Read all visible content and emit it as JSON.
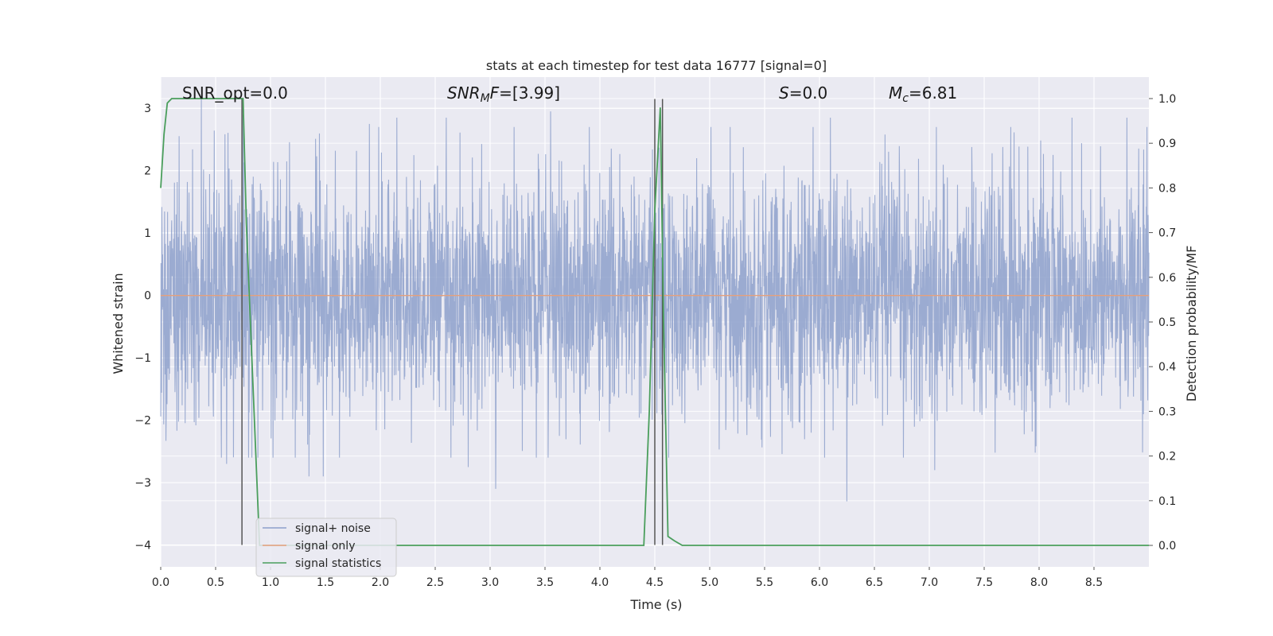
{
  "chart_data": {
    "type": "line",
    "title": "stats at each timestep for test data 16777 [signal=0]",
    "xlabel": "Time (s)",
    "ylabel": "Whitened strain",
    "y2label": "Detection probability/MF",
    "xlim": [
      0,
      9
    ],
    "ylim": [
      -4.35,
      3.5
    ],
    "y2lim": [
      -0.048,
      1.048
    ],
    "grid": true,
    "legend_position": "lower-left",
    "x_ticks": [
      0.0,
      0.5,
      1.0,
      1.5,
      2.0,
      2.5,
      3.0,
      3.5,
      4.0,
      4.5,
      5.0,
      5.5,
      6.0,
      6.5,
      7.0,
      7.5,
      8.0,
      8.5
    ],
    "x_tick_labels": [
      "0.0",
      "0.5",
      "1.0",
      "1.5",
      "2.0",
      "2.5",
      "3.0",
      "3.5",
      "4.0",
      "4.5",
      "5.0",
      "5.5",
      "6.0",
      "6.5",
      "7.0",
      "7.5",
      "8.0",
      "8.5"
    ],
    "y_ticks": [
      -4,
      -3,
      -2,
      -1,
      0,
      1,
      2,
      3
    ],
    "y_tick_labels": [
      "−4",
      "−3",
      "−2",
      "−1",
      "0",
      "1",
      "2",
      "3"
    ],
    "y2_ticks": [
      0.0,
      0.1,
      0.2,
      0.3,
      0.4,
      0.5,
      0.6,
      0.7,
      0.8,
      0.9,
      1.0
    ],
    "y2_tick_labels": [
      "0.0",
      "0.1",
      "0.2",
      "0.3",
      "0.4",
      "0.5",
      "0.6",
      "0.7",
      "0.8",
      "0.9",
      "1.0"
    ],
    "annotations": {
      "snr_opt": "SNR_opt=0.0",
      "snr_mf_prefix": "SNR",
      "snr_mf_sub": "M",
      "snr_mf_mid": "F",
      "snr_mf_value": "=[3.99]",
      "s_symbol": "S",
      "s_value": "=0.0",
      "mc_symbol": "M",
      "mc_sub": "c",
      "mc_value": "=6.81"
    },
    "series": [
      {
        "name": "signal+ noise",
        "color": "#8da0cb",
        "axis": "left",
        "kind": "noise",
        "amplitude_std": 1.0,
        "x_start": 0,
        "x_end": 9,
        "peaks": [
          {
            "x": 0.37,
            "y": 3.15
          },
          {
            "x": 0.75,
            "y": 2.9
          },
          {
            "x": 1.9,
            "y": 2.75
          },
          {
            "x": 2.15,
            "y": 2.85
          },
          {
            "x": 2.6,
            "y": 2.85
          },
          {
            "x": 3.55,
            "y": 2.95
          },
          {
            "x": 6.1,
            "y": 2.85
          },
          {
            "x": 8.3,
            "y": 2.85
          },
          {
            "x": 8.8,
            "y": 2.85
          },
          {
            "x": 3.05,
            "y": -3.1
          },
          {
            "x": 6.25,
            "y": -3.3
          },
          {
            "x": 1.35,
            "y": -2.9
          },
          {
            "x": 1.48,
            "y": -2.9
          },
          {
            "x": 7.05,
            "y": -2.8
          },
          {
            "x": 2.8,
            "y": -2.75
          },
          {
            "x": 0.6,
            "y": -2.7
          }
        ]
      },
      {
        "name": "signal only",
        "color": "#e5a07c",
        "axis": "left",
        "x": [
          0,
          9
        ],
        "values": [
          0,
          0
        ]
      },
      {
        "name": "signal statistics",
        "color": "#4a9e5c",
        "axis": "right",
        "x": [
          0.0,
          0.03,
          0.06,
          0.1,
          0.2,
          0.3,
          0.4,
          0.5,
          0.6,
          0.7,
          0.75,
          0.78,
          0.85,
          0.9,
          1.0,
          2.0,
          3.0,
          4.0,
          4.4,
          4.45,
          4.5,
          4.55,
          4.58,
          4.62,
          4.68,
          4.75,
          5.0,
          6.0,
          6.9,
          7.0,
          8.0,
          9.0
        ],
        "values": [
          0.8,
          0.92,
          0.99,
          1.0,
          1.0,
          1.0,
          1.0,
          1.0,
          1.0,
          1.0,
          1.0,
          0.72,
          0.3,
          0.0,
          0.0,
          0.0,
          0.0,
          0.0,
          0.0,
          0.3,
          0.75,
          0.98,
          0.5,
          0.02,
          0.01,
          0.0,
          0.0,
          0.0,
          0.0,
          0.0,
          0.0,
          0.0
        ]
      }
    ],
    "vertical_lines": {
      "color": "#555555",
      "x": [
        0.74,
        4.5,
        4.57
      ],
      "ymin": -4,
      "ymax": 3.15
    }
  }
}
